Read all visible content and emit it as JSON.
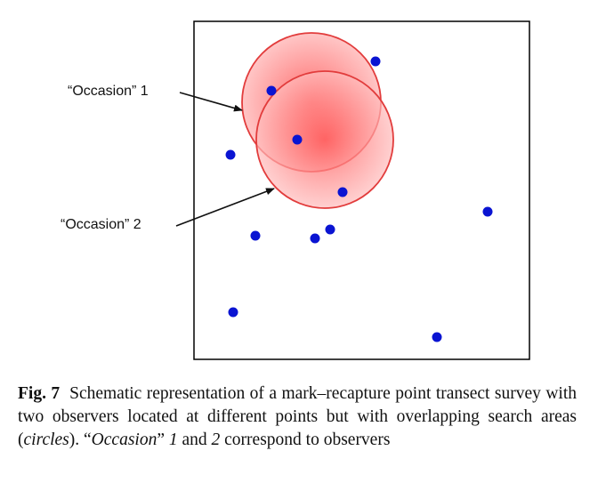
{
  "labels": {
    "occasion1": "“Occasion” 1",
    "occasion2": "“Occasion” 2"
  },
  "caption": {
    "fig_label": "Fig. 7",
    "part1": "Schematic representation of a mark–recapture point transect survey with two observers located at different points but with overlapping search areas (",
    "circles": "circles",
    "part2": "). “",
    "occasion": "Occasion",
    "part3": "” ",
    "num1": "1",
    "part4": " and ",
    "num2": "2",
    "part5": " correspond to observers"
  },
  "colors": {
    "dot": "#0a14d2",
    "circle_fill": "#ff6a6a",
    "circle_stroke": "#e23c3c",
    "frame": "#000000"
  }
}
